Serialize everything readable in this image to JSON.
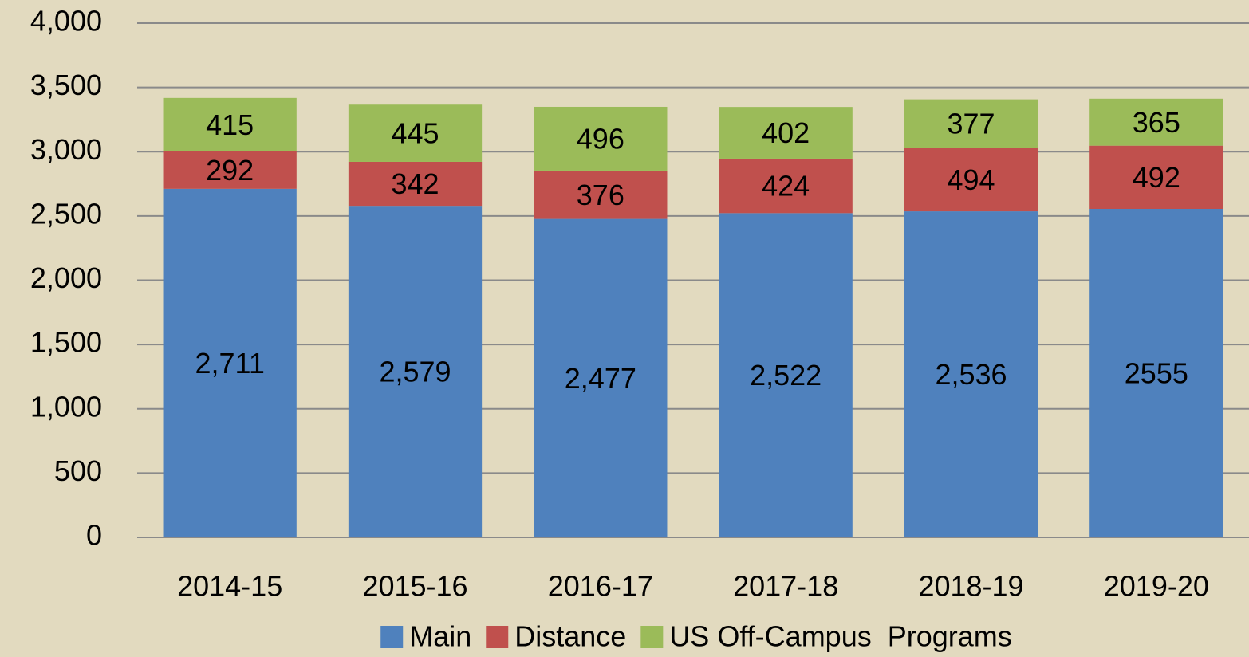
{
  "chart_data": {
    "type": "stacked_bar",
    "categories": [
      "2014-15",
      "2015-16",
      "2016-17",
      "2017-18",
      "2018-19",
      "2019-20"
    ],
    "series": [
      {
        "name": "Main",
        "color": "#4f81bd",
        "values": [
          2711,
          2579,
          2477,
          2522,
          2536,
          2555
        ],
        "value_labels": [
          "2,711",
          "2,579",
          "2,477",
          "2,522",
          "2,536",
          "2555"
        ]
      },
      {
        "name": "Distance",
        "color": "#c0504d",
        "values": [
          292,
          342,
          376,
          424,
          494,
          492
        ]
      },
      {
        "name": "US Off-Campus  Programs",
        "color": "#9bbb59",
        "values": [
          415,
          445,
          496,
          402,
          377,
          365
        ]
      }
    ],
    "ylim": [
      0,
      4000
    ],
    "yticks": [
      0,
      500,
      {
        "value": 1000,
        "label": "1,000"
      },
      {
        "value": 1500,
        "label": "1,500"
      },
      {
        "value": 2000,
        "label": "2,000"
      },
      {
        "value": 2500,
        "label": "2,500"
      },
      {
        "value": 3000,
        "label": "3,000"
      },
      {
        "value": 3500,
        "label": "3,500"
      },
      {
        "value": 4000,
        "label": "4,000"
      }
    ],
    "grid": true,
    "legend": "bottom"
  }
}
